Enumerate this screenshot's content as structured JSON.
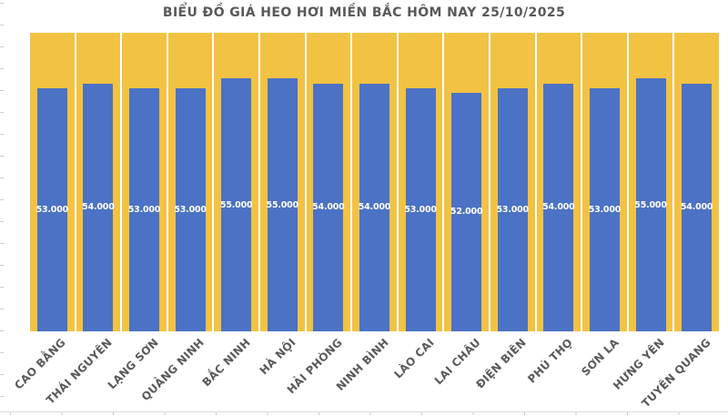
{
  "title": "BIỂU ĐỒ GIÁ HEO HƠI MIỀN BẮC HÔM NAY 25/10/2025",
  "chart_data": {
    "type": "bar",
    "title": "BIỂU ĐỒ GIÁ HEO HƠI MIỀN BẮC HÔM NAY 25/10/2025",
    "categories": [
      "CAO BẰNG",
      "THÁI NGUYÊN",
      "LẠNG SƠN",
      "QUẢNG NINH",
      "BẮC NINH",
      "HÀ NỘI",
      "HẢI PHÒNG",
      "NINH BÌNH",
      "LÀO CAI",
      "LAI CHÂU",
      "ĐIỆN BIÊN",
      "PHÚ THỌ",
      "SƠN LA",
      "HƯNG YÊN",
      "TUYÊN QUANG"
    ],
    "values": [
      53000,
      54000,
      53000,
      53000,
      55000,
      55000,
      54000,
      54000,
      53000,
      52000,
      53000,
      54000,
      53000,
      55000,
      54000
    ],
    "value_labels": [
      "53.000",
      "54.000",
      "53.000",
      "53.000",
      "55.000",
      "55.000",
      "54.000",
      "54.000",
      "53.000",
      "52.000",
      "53.000",
      "54.000",
      "53.000",
      "55.000",
      "54.000"
    ],
    "xlabel": "",
    "ylabel": "",
    "ylim": [
      0,
      65000
    ],
    "grid": false,
    "legend": false,
    "value_labels_position": "center-of-bar",
    "category_label_rotation_deg": 45,
    "colors": {
      "bar": "#4B72C4",
      "column_background": "#F2C242",
      "value_label": "#FFFFFF",
      "axis_label": "#595959",
      "title": "#595959"
    }
  }
}
